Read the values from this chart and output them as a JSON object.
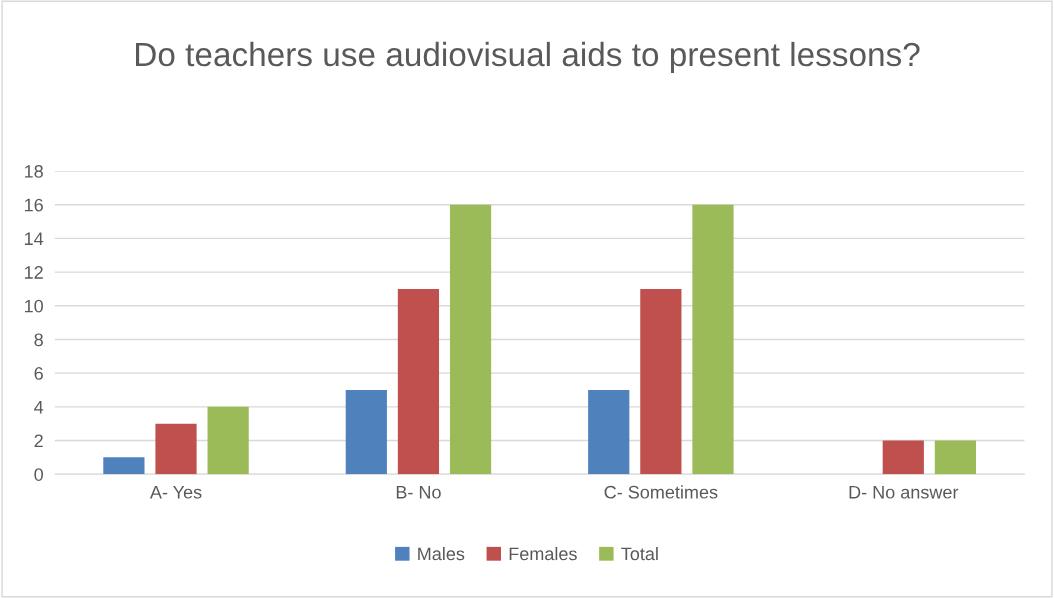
{
  "chart_data": {
    "type": "bar",
    "title": "Do teachers use audiovisual aids to present lessons?",
    "categories": [
      "A- Yes",
      "B- No",
      "C- Sometimes",
      "D- No answer"
    ],
    "series": [
      {
        "name": "Males",
        "color": "#4f81bd",
        "values": [
          1,
          5,
          5,
          0
        ]
      },
      {
        "name": "Females",
        "color": "#c0504d",
        "values": [
          3,
          11,
          11,
          2
        ]
      },
      {
        "name": "Total",
        "color": "#9bbb59",
        "values": [
          4,
          16,
          16,
          2
        ]
      }
    ],
    "ylim": [
      0,
      18
    ],
    "yticks": [
      0,
      2,
      4,
      6,
      8,
      10,
      12,
      14,
      16,
      18
    ],
    "grid": "y",
    "legend": "bottom"
  }
}
